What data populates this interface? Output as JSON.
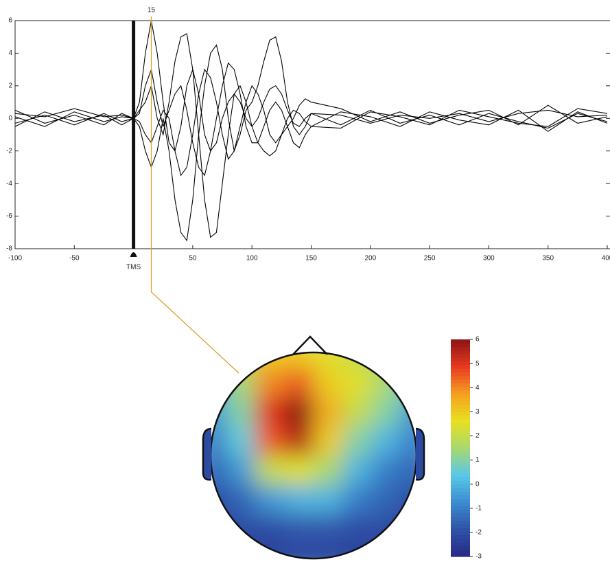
{
  "chart_data": [
    {
      "type": "line",
      "x": [
        -100,
        -75,
        -50,
        -25,
        -10,
        0,
        5,
        10,
        15,
        20,
        25,
        30,
        35,
        40,
        45,
        50,
        55,
        60,
        65,
        70,
        75,
        80,
        85,
        90,
        95,
        100,
        105,
        110,
        115,
        120,
        125,
        130,
        135,
        140,
        145,
        150,
        175,
        200,
        225,
        250,
        275,
        300,
        325,
        350,
        375,
        400
      ],
      "series": [
        {
          "color": "#000000",
          "values": [
            0.3,
            0.1,
            0.6,
            0.1,
            0.2,
            0,
            1,
            4,
            6,
            4,
            1,
            -1.5,
            -2,
            -0.5,
            2,
            3,
            1.5,
            -1,
            -2,
            -1.5,
            0,
            1,
            1.5,
            1,
            0,
            -0.5,
            0,
            1,
            1.8,
            2,
            1.5,
            0.5,
            -0.3,
            -0.5,
            0,
            0.3,
            0.2,
            -0.3,
            0.2,
            0,
            0.3,
            -0.2,
            0.3,
            0.5,
            0.1,
            0.2
          ]
        },
        {
          "color": "#000000",
          "values": [
            -0.3,
            0.2,
            -0.4,
            0.3,
            -0.2,
            0,
            -0.5,
            -2,
            -3,
            -2,
            0,
            -2,
            -5,
            -7,
            -7.5,
            -5,
            -1,
            2,
            4,
            4.5,
            3,
            0,
            -2,
            -1,
            0.5,
            1,
            2,
            3.5,
            4.8,
            5,
            3.5,
            1,
            -0.5,
            -1,
            -0.5,
            0.3,
            -0.4,
            0.5,
            -0.3,
            0.2,
            -0.4,
            0.3,
            -0.2,
            -0.6,
            0.3,
            -0.2
          ]
        },
        {
          "color": "#000000",
          "values": [
            0.5,
            -0.3,
            0.2,
            -0.4,
            0.3,
            0,
            0.5,
            1,
            2,
            0,
            -1,
            1,
            3.5,
            5,
            5.2,
            3,
            -1,
            -5,
            -7.3,
            -7,
            -4,
            -1,
            1.5,
            2,
            1,
            -0.5,
            -1.5,
            -2,
            -2.3,
            -2,
            -1,
            -0.5,
            0,
            0.8,
            1.2,
            1,
            0.6,
            -0.2,
            0.4,
            -0.3,
            0.2,
            0.5,
            -0.4,
            0.8,
            -0.3,
            0.1
          ]
        },
        {
          "color": "#000000",
          "values": [
            -0.5,
            0.4,
            -0.2,
            0.2,
            -0.4,
            0,
            0.3,
            2,
            3,
            1,
            -0.5,
            0.5,
            1.5,
            2,
            0.5,
            -1.5,
            -3,
            -3.5,
            -2,
            0,
            2,
            3.4,
            3,
            1.5,
            -0.5,
            -1.5,
            -1.5,
            -0.5,
            0.5,
            1,
            0.5,
            -0.5,
            -1.5,
            -1.8,
            -1,
            -0.5,
            0.4,
            0.1,
            -0.5,
            0.4,
            -0.1,
            -0.4,
            0.5,
            -0.8,
            0.4,
            -0.3
          ]
        },
        {
          "color": "#000000",
          "values": [
            0.1,
            -0.5,
            0.4,
            -0.2,
            0.1,
            0,
            -0.2,
            -1,
            -1.5,
            -0.5,
            0.5,
            0,
            -2,
            -3.5,
            -3,
            -1,
            1.5,
            3,
            2.5,
            1,
            -1,
            -2.5,
            -2,
            -0.5,
            1,
            2,
            1.5,
            0.5,
            -1,
            -1.5,
            -1,
            0,
            0.5,
            0.3,
            -0.2,
            -0.5,
            -0.6,
            0.4,
            0.1,
            -0.4,
            0.5,
            0.1,
            -0.3,
            -0.5,
            0.6,
            0.3
          ]
        }
      ],
      "xlim": [
        -100,
        400
      ],
      "ylim": [
        -8,
        6
      ],
      "xticks": [
        -100,
        -50,
        50,
        100,
        150,
        200,
        250,
        300,
        350,
        400
      ],
      "yticks": [
        -8,
        -6,
        -4,
        -2,
        0,
        2,
        4,
        6
      ],
      "event": {
        "x": 0,
        "label": "TMS"
      },
      "marker": {
        "x": 15,
        "color": "#d9a030"
      }
    },
    {
      "type": "heatmap",
      "values": [
        [
          1,
          2,
          3,
          3,
          2.5,
          2,
          1.5,
          1
        ],
        [
          0,
          1.5,
          4,
          4.5,
          3,
          2.5,
          1.5,
          0.5
        ],
        [
          -0.5,
          1,
          5,
          6,
          3.5,
          2,
          1,
          -0.5
        ],
        [
          -1,
          0.5,
          4.5,
          5.5,
          3,
          1,
          0,
          -1
        ],
        [
          -1.5,
          -0.5,
          2,
          2.5,
          1.5,
          0,
          -1,
          -1.5
        ],
        [
          -2,
          -1.5,
          -0.5,
          0,
          0,
          -1,
          -1.5,
          -2
        ],
        [
          -2.5,
          -2,
          -2,
          -1.8,
          -1.8,
          -2,
          -2,
          -2.5
        ],
        [
          -2.5,
          -2.5,
          -2.3,
          -2.2,
          -2.2,
          -2.3,
          -2.5,
          -2.5
        ]
      ],
      "clim": [
        -3,
        6
      ],
      "cticks": [
        -3,
        -2,
        -1,
        0,
        1,
        2,
        3,
        4,
        5,
        6
      ],
      "colormap": [
        "#262a87",
        "#2f52a8",
        "#3c8bd0",
        "#58c8e8",
        "#a8d870",
        "#e8e020",
        "#f5a020",
        "#e83a20",
        "#8c1414"
      ]
    }
  ]
}
